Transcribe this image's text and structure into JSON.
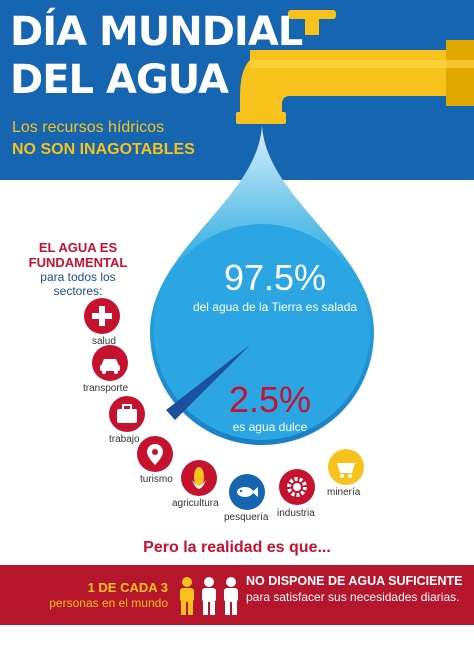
{
  "header": {
    "title_line1": "DÍA MUNDIAL",
    "title_line2": "DEL AGUA",
    "subtitle": "Los recursos hídricos",
    "subtitle_bold": "NO SON INAGOTABLES"
  },
  "stats": {
    "salt_percent": "97.5%",
    "salt_text": "del agua de la Tierra es salada",
    "fresh_percent": "2.5%",
    "fresh_text": "es agua dulce"
  },
  "sectors": {
    "heading_line1": "EL AGUA ES",
    "heading_line2": "FUNDAMENTAL",
    "sub_line1": "para todos los",
    "sub_line2": "sectores:",
    "items": [
      {
        "label": "salud",
        "icon": "health-cross-icon"
      },
      {
        "label": "transporte",
        "icon": "car-icon"
      },
      {
        "label": "trabajo",
        "icon": "briefcase-icon"
      },
      {
        "label": "turismo",
        "icon": "map-pin-icon"
      },
      {
        "label": "agricultura",
        "icon": "corn-icon"
      },
      {
        "label": "pesquería",
        "icon": "fish-icon"
      },
      {
        "label": "industria",
        "icon": "gear-icon"
      },
      {
        "label": "minería",
        "icon": "mine-cart-icon"
      }
    ]
  },
  "reality": {
    "intro": "Pero la realidad es que...",
    "ratio": "1 DE CADA 3",
    "ratio_sub": "personas en el mundo",
    "statement": "NO DISPONE DE AGUA SUFICIENTE",
    "statement_sub": "para satisfacer sus necesidades diarias."
  },
  "colors": {
    "header_blue": "#1565b0",
    "accent_yellow": "#f7c21b",
    "accent_red": "#c4122f",
    "drop_blue": "#29a9e0"
  }
}
